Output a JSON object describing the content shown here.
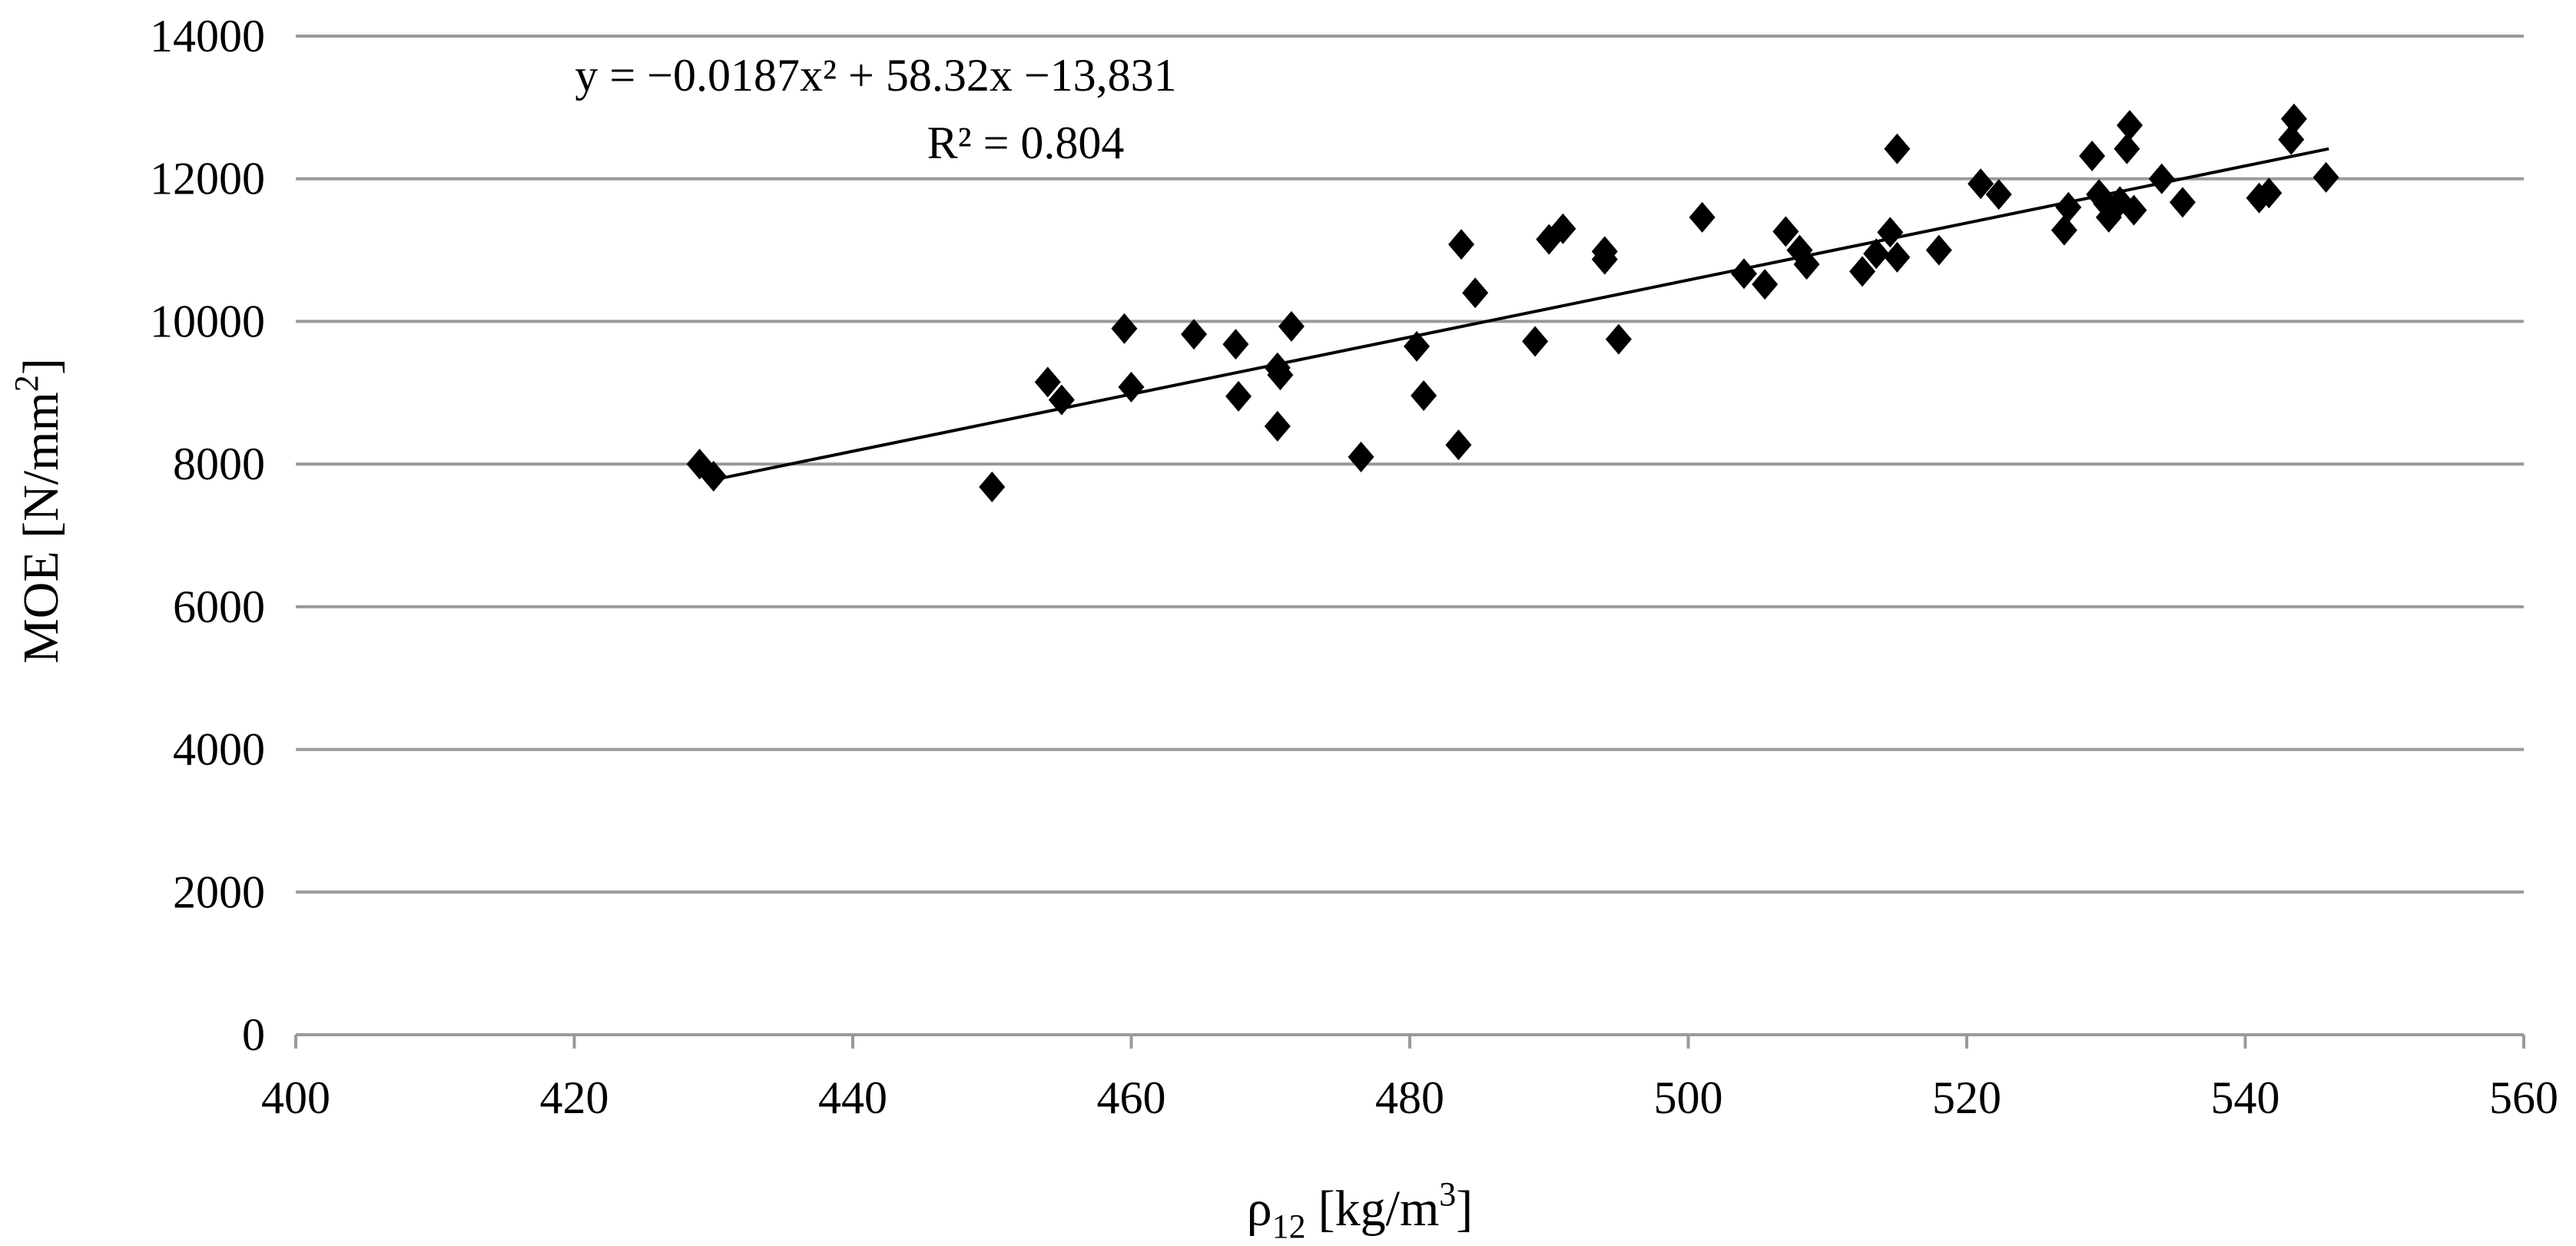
{
  "chart_data": {
    "type": "scatter",
    "title": "",
    "xlabel": "ρ",
    "xlabel_sub": "12",
    "xlabel_unit_pre": "[kg/m",
    "xlabel_unit_sup": "3",
    "xlabel_unit_post": "]",
    "ylabel": "MOE [N/mm",
    "ylabel_sup": "2",
    "ylabel_post": "]",
    "xlim": [
      400,
      560
    ],
    "ylim": [
      0,
      14000
    ],
    "xticks": [
      400,
      420,
      440,
      460,
      480,
      500,
      520,
      540,
      560
    ],
    "yticks": [
      0,
      2000,
      4000,
      6000,
      8000,
      10000,
      12000,
      14000
    ],
    "grid": "horizontal",
    "annotation": {
      "equation": "y = −0.0187x² + 58.32x −13,831",
      "r_squared": "R² = 0.804"
    },
    "trendline": {
      "type": "linear-approx",
      "x": [
        430,
        546
      ],
      "y": [
        7780,
        12420
      ]
    },
    "series": [
      {
        "name": "MOE",
        "marker": "diamond",
        "points": [
          [
            429,
            8000
          ],
          [
            430,
            7830
          ],
          [
            450,
            7680
          ],
          [
            454,
            9150
          ],
          [
            455,
            8900
          ],
          [
            459.5,
            9900
          ],
          [
            460,
            9080
          ],
          [
            464.5,
            9820
          ],
          [
            467.5,
            9680
          ],
          [
            467.7,
            8950
          ],
          [
            470.5,
            9350
          ],
          [
            470.7,
            9250
          ],
          [
            470.5,
            8530
          ],
          [
            471.5,
            9930
          ],
          [
            476.5,
            8100
          ],
          [
            480.5,
            9650
          ],
          [
            481,
            8960
          ],
          [
            483.7,
            11080
          ],
          [
            483.5,
            8270
          ],
          [
            484.7,
            10400
          ],
          [
            489,
            9720
          ],
          [
            490,
            11150
          ],
          [
            491,
            11300
          ],
          [
            494,
            10980
          ],
          [
            494,
            10870
          ],
          [
            495,
            9750
          ],
          [
            501,
            11460
          ],
          [
            504,
            10670
          ],
          [
            505.5,
            10520
          ],
          [
            507,
            11260
          ],
          [
            508,
            11000
          ],
          [
            508.5,
            10800
          ],
          [
            512.5,
            10700
          ],
          [
            513.5,
            10950
          ],
          [
            514.5,
            11250
          ],
          [
            515,
            10900
          ],
          [
            515,
            12420
          ],
          [
            518,
            11000
          ],
          [
            521,
            11930
          ],
          [
            522.3,
            11780
          ],
          [
            527,
            11280
          ],
          [
            527.3,
            11600
          ],
          [
            529,
            12320
          ],
          [
            529.5,
            11780
          ],
          [
            530,
            11650
          ],
          [
            530.2,
            11460
          ],
          [
            531,
            11680
          ],
          [
            531.5,
            12420
          ],
          [
            531.7,
            12750
          ],
          [
            532,
            11560
          ],
          [
            534,
            12000
          ],
          [
            535.5,
            11670
          ],
          [
            541,
            11730
          ],
          [
            541.7,
            11800
          ],
          [
            543.3,
            12550
          ],
          [
            543.5,
            12840
          ],
          [
            545.8,
            12020
          ]
        ]
      }
    ]
  }
}
